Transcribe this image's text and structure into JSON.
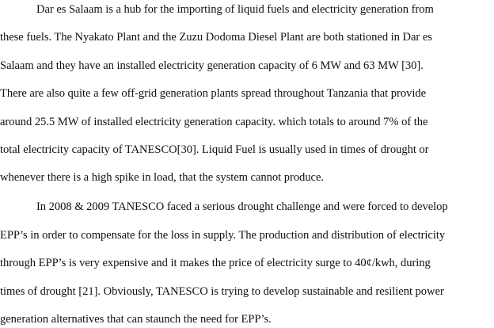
{
  "document": {
    "paragraphs": [
      {
        "lines": [
          "Dar es Salaam is a hub for the importing of liquid fuels and electricity generation from",
          "these fuels. The Nyakato Plant and the Zuzu Dodoma Diesel Plant are both stationed in Dar es",
          "Salaam and they have an installed electricity generation capacity of 6 MW and 63 MW [30].",
          "There are also quite a few off-grid generation plants spread throughout Tanzania that provide",
          "around 25.5 MW of installed electricity generation capacity. which  totals to around 7% of the",
          "total electricity capacity of TANESCO[30]. Liquid Fuel is usually used in times of drought or",
          "whenever there is a high spike in load, that the system cannot produce."
        ]
      },
      {
        "lines": [
          "In 2008 & 2009 TANESCO faced a serious drought challenge and were forced to develop",
          "EPP’s in order to compensate for the loss in supply. The production and distribution of electricity",
          "through EPP’s is very expensive and it makes the price of electricity surge to 40¢/kwh, during",
          "times of drought [21]. Obviously, TANESCO is trying to develop sustainable and resilient power",
          "generation alternatives that can staunch the need for EPP’s."
        ]
      }
    ]
  }
}
